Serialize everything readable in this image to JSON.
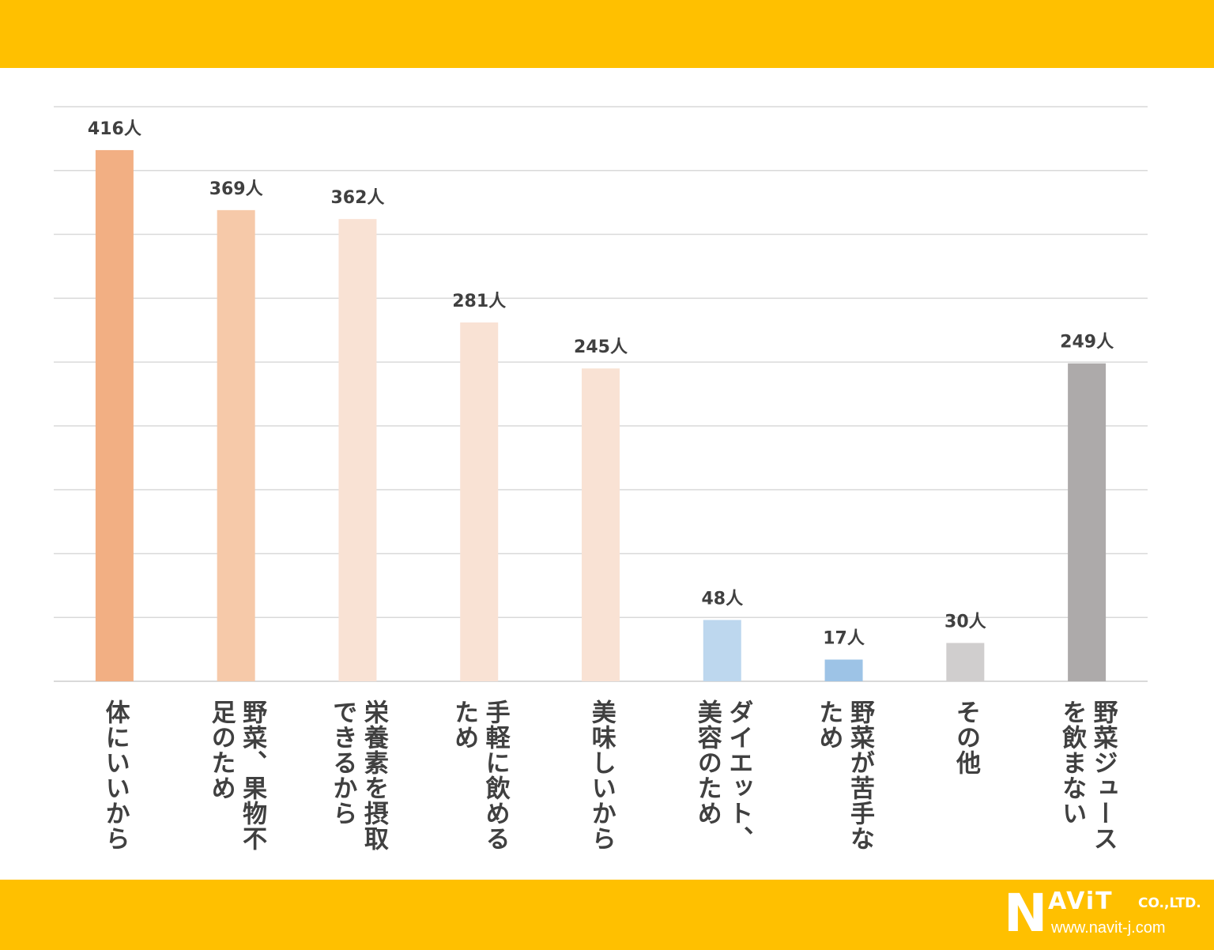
{
  "chart_data": {
    "type": "bar",
    "categories": [
      "体にいいから",
      "野菜、果物不足のため",
      "栄養素を摂取できるから",
      "手軽に飲めるため",
      "美味しいから",
      "ダイエット、美容のため",
      "野菜が苦手なため",
      "その他",
      "野菜ジュースを飲まない"
    ],
    "category_lines": [
      [
        "体にいいから"
      ],
      [
        "野菜、果物不",
        "足のため"
      ],
      [
        "栄養素を摂取",
        "できるから"
      ],
      [
        "手軽に飲める",
        "ため"
      ],
      [
        "美味しいから"
      ],
      [
        "ダイエット、",
        "美容のため"
      ],
      [
        "野菜が苦手な",
        "ため"
      ],
      [
        "その他"
      ],
      [
        "野菜ジュース",
        "を飲まない"
      ]
    ],
    "values": [
      416,
      369,
      362,
      281,
      245,
      48,
      17,
      30,
      249
    ],
    "data_labels": [
      "416人",
      "369人",
      "362人",
      "281人",
      "245人",
      "48人",
      "17人",
      "30人",
      "249人"
    ],
    "colors": [
      "#F2AF83",
      "#F6C9A9",
      "#F9E2D4",
      "#F9E2D4",
      "#F9E2D4",
      "#BDD7EE",
      "#9DC3E6",
      "#D0CECE",
      "#ADAAAA"
    ],
    "ylim": [
      0,
      450
    ],
    "grid": true,
    "gridline_count": 9
  },
  "logo": {
    "letter": "N",
    "word": "AViT",
    "company": "CO.,LTD.",
    "url": "www.navit-j.com"
  },
  "colors": {
    "band": "#FFC000",
    "label_text": "#404040",
    "grid": "#D9D9D9"
  }
}
